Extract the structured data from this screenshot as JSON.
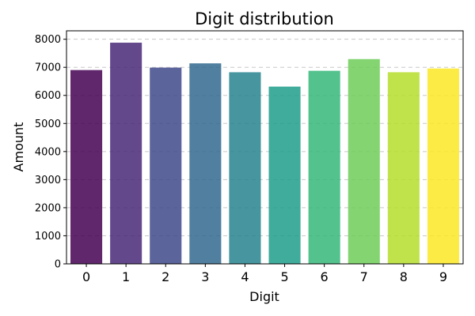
{
  "chart_data": {
    "type": "bar",
    "title": "Digit distribution",
    "xlabel": "Digit",
    "ylabel": "Amount",
    "categories": [
      "0",
      "1",
      "2",
      "3",
      "4",
      "5",
      "6",
      "7",
      "8",
      "9"
    ],
    "values": [
      6903,
      7877,
      6990,
      7141,
      6824,
      6313,
      6876,
      7293,
      6825,
      6958
    ],
    "ylim": [
      0,
      8300
    ],
    "yticks": [
      0,
      1000,
      2000,
      3000,
      4000,
      5000,
      6000,
      7000,
      8000
    ],
    "grid": "horizontal dashed",
    "colors": [
      "#440154",
      "#482878",
      "#3e4989",
      "#31688e",
      "#26828e",
      "#1f9e89",
      "#35b779",
      "#6ece58",
      "#b5de2b",
      "#fde725"
    ]
  }
}
